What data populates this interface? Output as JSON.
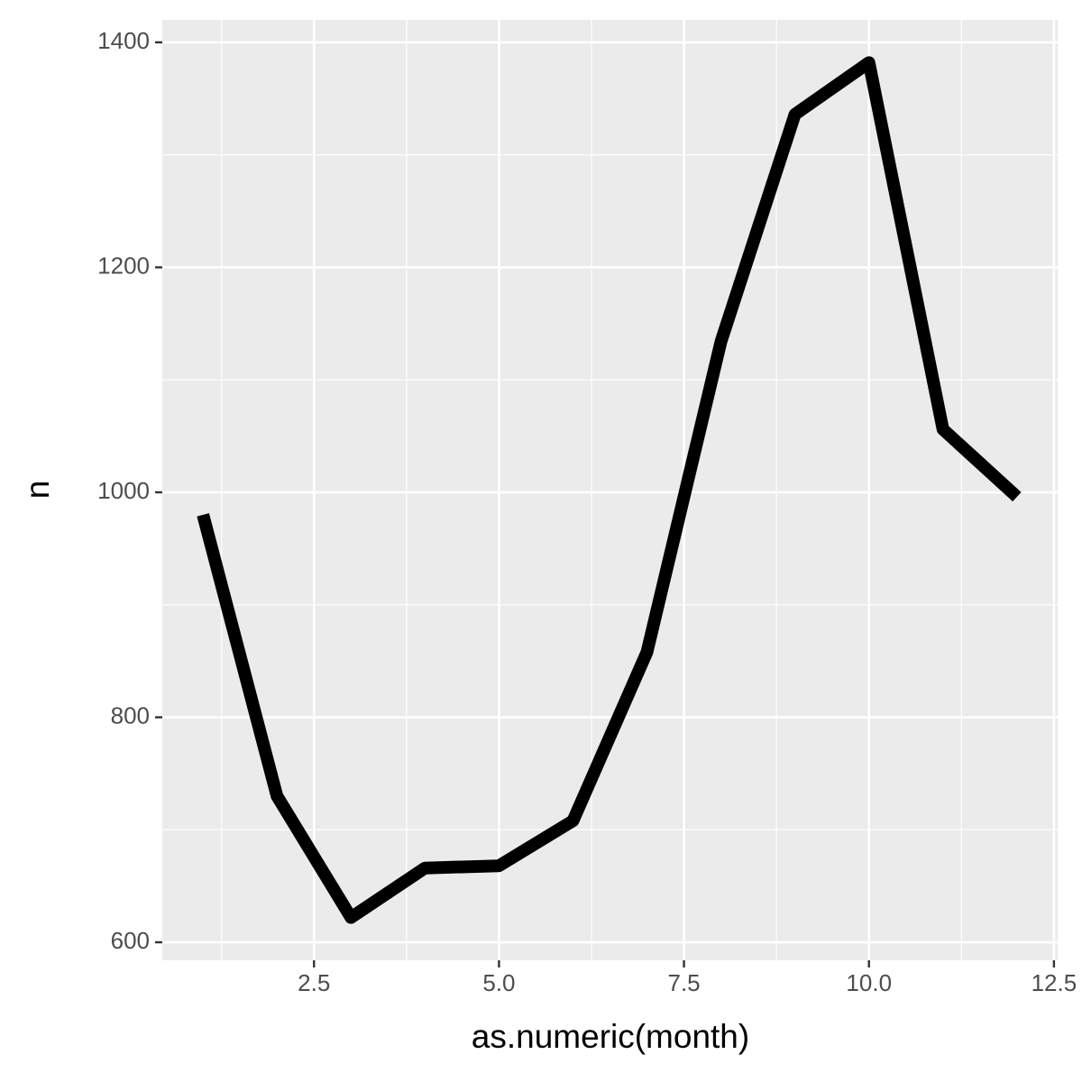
{
  "chart_data": {
    "type": "line",
    "x_label": "as.numeric(month)",
    "y_label": "n",
    "x": [
      1,
      2,
      3,
      4,
      5,
      6,
      7,
      8,
      9,
      10,
      11,
      12
    ],
    "values": [
      980,
      730,
      622,
      666,
      668,
      708,
      858,
      1134,
      1336,
      1382,
      1056,
      996
    ],
    "color": "#000000",
    "xlim": [
      0.45,
      12.55
    ],
    "xticks": [
      {
        "value": 2.5,
        "label": "2.5"
      },
      {
        "value": 5,
        "label": "5.0"
      },
      {
        "value": 7.5,
        "label": "7.5"
      },
      {
        "value": 10,
        "label": "10.0"
      },
      {
        "value": 12.5,
        "label": "12.5"
      }
    ],
    "x_minor_ticks": [
      1.25,
      3.75,
      6.25,
      8.75,
      11.25
    ],
    "ylim": [
      584,
      1420
    ],
    "yticks": [
      600,
      800,
      1000,
      1200,
      1400
    ],
    "y_minor_ticks": [
      700,
      900,
      1100,
      1300
    ],
    "grid": true
  }
}
